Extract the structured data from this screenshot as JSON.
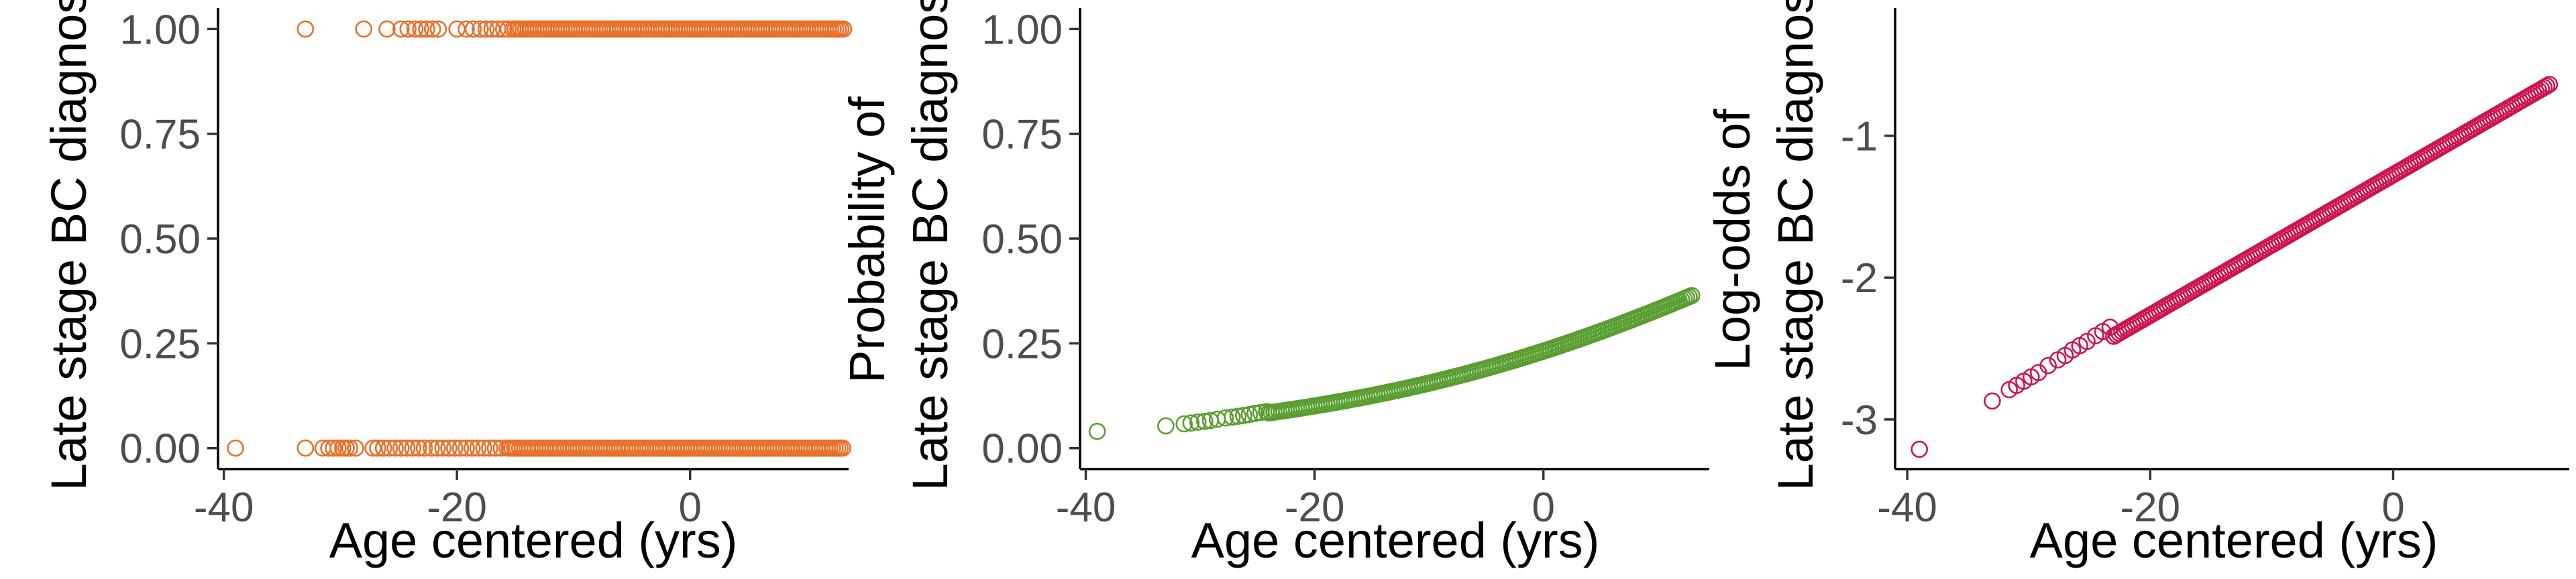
{
  "chart_data": [
    {
      "type": "scatter",
      "xlabel": "Age centered (yrs)",
      "ylabel": "Late stage BC diagnos",
      "x_ticks": [
        "-40",
        "-20",
        "0"
      ],
      "y_ticks": [
        "0.00",
        "0.25",
        "0.50",
        "0.75",
        "1.00"
      ],
      "xlim": [
        -40.5,
        13.6
      ],
      "ylim": [
        -0.05,
        1.05
      ],
      "color": "#e8702a",
      "grid": false,
      "series": [
        {
          "points_y0": [
            [
              -39,
              0
            ],
            [
              -33,
              0
            ],
            [
              -31.5,
              0
            ],
            [
              -31,
              0
            ],
            [
              -30.6,
              0
            ],
            [
              -30.2,
              0
            ],
            [
              -29.8,
              0
            ],
            [
              -29.5,
              0
            ],
            [
              -29.2,
              0
            ],
            [
              -28.7,
              0
            ],
            [
              -27.2,
              0
            ],
            [
              -26.8,
              0
            ],
            [
              -26.3,
              0
            ],
            [
              -25.8,
              0
            ],
            [
              -25.3,
              0
            ],
            [
              -24.8,
              0
            ],
            [
              -24.3,
              0
            ],
            [
              -23.8,
              0
            ],
            [
              -23.3,
              0
            ],
            [
              -22.8,
              0
            ],
            [
              -22.2,
              0
            ],
            [
              -21.7,
              0
            ],
            [
              -21.2,
              0
            ],
            [
              -20.7,
              0
            ],
            [
              -20.2,
              0
            ],
            [
              -19.7,
              0
            ],
            [
              -19.2,
              0
            ],
            [
              -18.7,
              0
            ],
            [
              -18.2,
              0
            ],
            [
              -17.7,
              0
            ],
            [
              -17.2,
              0
            ],
            [
              -16.7,
              0
            ],
            [
              -16.2,
              0
            ],
            [
              -15.7,
              0
            ]
          ],
          "points_y1": [
            [
              -33,
              1
            ],
            [
              -28,
              1
            ],
            [
              -26,
              1
            ],
            [
              -24.8,
              1
            ],
            [
              -24.2,
              1
            ],
            [
              -23.6,
              1
            ],
            [
              -23.1,
              1
            ],
            [
              -22.6,
              1
            ],
            [
              -22.1,
              1
            ],
            [
              -21.6,
              1
            ],
            [
              -20,
              1
            ],
            [
              -19.2,
              1
            ],
            [
              -18.6,
              1
            ],
            [
              -18,
              1
            ],
            [
              -17.5,
              1
            ],
            [
              -17,
              1
            ],
            [
              -16.5,
              1
            ],
            [
              -16,
              1
            ],
            [
              -15.6,
              1
            ],
            [
              -15.2,
              1
            ]
          ],
          "dense_range_y0": [
            -15.5,
            13.2
          ],
          "dense_range_y1": [
            -15,
            13.2
          ]
        }
      ]
    },
    {
      "type": "scatter",
      "xlabel": "Age centered (yrs)",
      "ylabel_line1": "Probability of",
      "ylabel_line2": "Late stage BC diagnos",
      "x_ticks": [
        "-40",
        "-20",
        "0"
      ],
      "y_ticks": [
        "0.00",
        "0.25",
        "0.50",
        "0.75",
        "1.00"
      ],
      "xlim": [
        -40.5,
        14.5
      ],
      "ylim": [
        -0.05,
        1.05
      ],
      "color": "#5a9e32",
      "grid": false,
      "series": [
        {
          "points": [
            [
              -39,
              0.04
            ],
            [
              -33,
              0.053
            ],
            [
              -31.4,
              0.058
            ],
            [
              -30.8,
              0.06
            ],
            [
              -30.2,
              0.062
            ],
            [
              -29.6,
              0.064
            ],
            [
              -29.1,
              0.066
            ],
            [
              -28.5,
              0.069
            ],
            [
              -27.8,
              0.072
            ],
            [
              -27.2,
              0.074
            ],
            [
              -26.7,
              0.076
            ],
            [
              -26.2,
              0.078
            ],
            [
              -25.7,
              0.08
            ],
            [
              -25.2,
              0.083
            ],
            [
              -24.7,
              0.085
            ],
            [
              -24.2,
              0.087
            ]
          ],
          "dense_curve": {
            "x_from": -24,
            "x_to": 13,
            "intercept": -1.2,
            "slope": 0.0495
          }
        }
      ]
    },
    {
      "type": "scatter",
      "xlabel": "Age centered (yrs)",
      "ylabel_line1": "Log-odds of",
      "ylabel_line2": "Late stage BC diagnos",
      "x_ticks": [
        "-40",
        "-20",
        "0"
      ],
      "y_ticks": [
        "-3",
        "-2",
        "-1"
      ],
      "xlim": [
        -41,
        14.5
      ],
      "ylim": [
        -3.35,
        -0.1
      ],
      "color": "#cc1450",
      "grid": false,
      "series": [
        {
          "points": [
            [
              -39,
              -3.21
            ],
            [
              -33,
              -2.87
            ],
            [
              -31.6,
              -2.79
            ],
            [
              -31,
              -2.76
            ],
            [
              -30.4,
              -2.73
            ],
            [
              -29.8,
              -2.7
            ],
            [
              -29.2,
              -2.67
            ],
            [
              -28.4,
              -2.62
            ],
            [
              -27.6,
              -2.58
            ],
            [
              -27,
              -2.55
            ],
            [
              -26.4,
              -2.51
            ],
            [
              -25.8,
              -2.48
            ],
            [
              -25.2,
              -2.45
            ],
            [
              -24.5,
              -2.41
            ],
            [
              -23.9,
              -2.38
            ],
            [
              -23.3,
              -2.35
            ]
          ],
          "dense_line": {
            "x_from": -23,
            "x_to": 13,
            "intercept": -1.275,
            "slope": 0.0495
          }
        }
      ]
    }
  ]
}
